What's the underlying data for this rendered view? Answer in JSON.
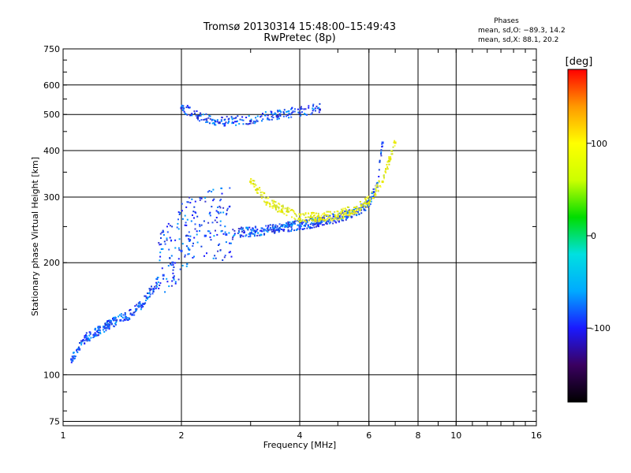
{
  "chart_data": {
    "type": "scatter",
    "title": "Tromsø 20130314 15:48:00–15:49:43",
    "subtitle": "RwPretec (8p)",
    "xlabel": "Frequency [MHz]",
    "ylabel": "Stationary phase Virtual Height [km]",
    "x_scale": "log",
    "y_scale": "log",
    "xlim": [
      1,
      16
    ],
    "ylim": [
      73,
      750
    ],
    "x_ticks": [
      1,
      2,
      4,
      6,
      8,
      10,
      16
    ],
    "y_ticks": [
      75,
      100,
      200,
      300,
      400,
      500,
      600,
      750
    ],
    "grid": true,
    "stats": {
      "heading": "Phases",
      "line1": "mean, sd,O: −89.3, 14.2",
      "line2": "mean, sd,X:  88.1, 20.2"
    },
    "colorbar": {
      "label": "[deg]",
      "range": [
        -180,
        180
      ],
      "ticks": [
        100,
        0,
        -100
      ],
      "colors": [
        "#000000",
        "#3a0060",
        "#1a1aff",
        "#00aaff",
        "#00e0e0",
        "#00dd00",
        "#ccff00",
        "#ffff00",
        "#ff9900",
        "#ff0000"
      ]
    },
    "series": [
      {
        "description_role": "O-mode trace",
        "color": "#1e4cff",
        "x": [
          1.05,
          1.1,
          1.15,
          1.2,
          1.3,
          1.4,
          1.5,
          1.6,
          1.7,
          1.8,
          1.9,
          2.0,
          2.1,
          2.3,
          2.6,
          3.0,
          3.5,
          4.0,
          4.5,
          5.0,
          5.5,
          6.0,
          6.3,
          6.5
        ],
        "y": [
          110,
          117,
          125,
          128,
          135,
          140,
          145,
          155,
          170,
          185,
          200,
          215,
          230,
          236,
          238,
          240,
          245,
          250,
          255,
          262,
          270,
          285,
          320,
          420
        ]
      },
      {
        "description_role": "X-mode trace",
        "color": "#e8e800",
        "x": [
          3.0,
          3.3,
          3.6,
          4.0,
          4.5,
          5.0,
          5.5,
          6.0,
          6.5,
          6.8,
          7.0
        ],
        "y": [
          330,
          290,
          275,
          262,
          262,
          266,
          275,
          290,
          330,
          380,
          420
        ]
      },
      {
        "description_role": "F-layer upper echo",
        "color": "#2a2ad0",
        "x": [
          2.0,
          2.2,
          2.5,
          3.0,
          3.5,
          4.0,
          4.5
        ],
        "y": [
          520,
          490,
          475,
          480,
          495,
          505,
          515
        ]
      }
    ]
  }
}
